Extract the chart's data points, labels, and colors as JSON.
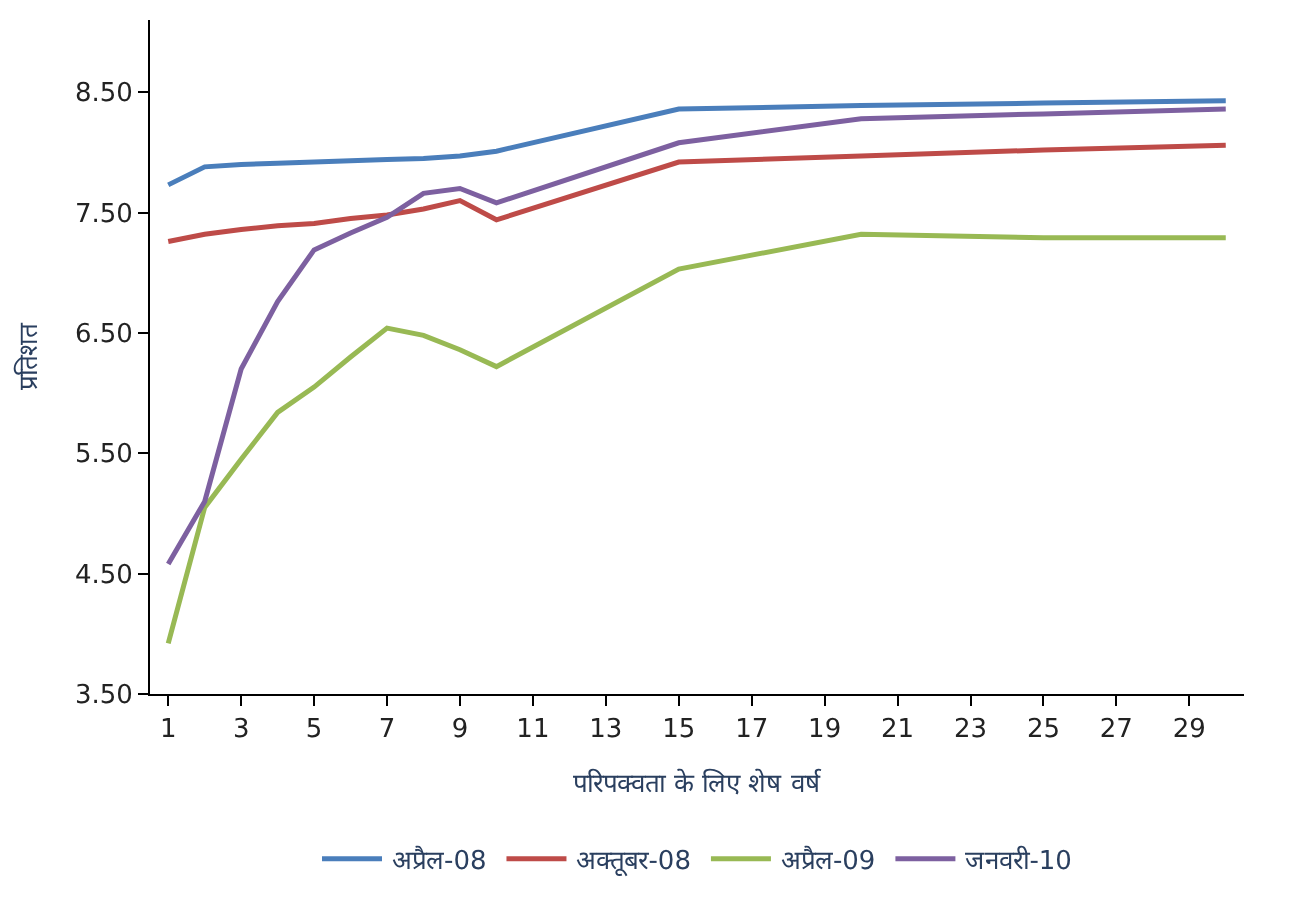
{
  "chart_data": {
    "type": "line",
    "xlabel": "परिपक्वता के लिए शेष वर्ष",
    "ylabel": "प्रतिशत",
    "xlim": [
      0.5,
      30.5
    ],
    "xticks": [
      1,
      3,
      5,
      7,
      9,
      11,
      13,
      15,
      17,
      19,
      21,
      23,
      25,
      27,
      29
    ],
    "ylim": [
      3.5,
      9.1
    ],
    "yticks": [
      {
        "value": 3.5,
        "label": "3.50"
      },
      {
        "value": 4.5,
        "label": "4.50"
      },
      {
        "value": 5.5,
        "label": "5.50"
      },
      {
        "value": 6.5,
        "label": "6.50"
      },
      {
        "value": 7.5,
        "label": "7.50"
      },
      {
        "value": 8.5,
        "label": "8.50"
      }
    ],
    "legend": "bottom",
    "marker": "none",
    "line_style": "solid",
    "x": [
      1,
      2,
      3,
      4,
      5,
      6,
      7,
      8,
      9,
      10,
      15,
      20,
      25,
      30
    ],
    "series": [
      {
        "name": "अप्रैल-08",
        "color": "#4a7ebb",
        "values": [
          7.73,
          7.88,
          7.9,
          7.91,
          7.92,
          7.93,
          7.94,
          7.95,
          7.97,
          8.01,
          8.36,
          8.39,
          8.41,
          8.43
        ]
      },
      {
        "name": "अक्तूबर-08",
        "color": "#be4b48",
        "values": [
          7.26,
          7.32,
          7.36,
          7.39,
          7.41,
          7.45,
          7.48,
          7.53,
          7.6,
          7.44,
          7.92,
          7.97,
          8.02,
          8.06
        ]
      },
      {
        "name": "अप्रैल-09",
        "color": "#98b954",
        "values": [
          3.92,
          5.05,
          5.45,
          5.84,
          6.05,
          6.3,
          6.54,
          6.48,
          6.36,
          6.22,
          7.03,
          7.32,
          7.29,
          7.29
        ]
      },
      {
        "name": "जनवरी-10",
        "color": "#7d60a0",
        "values": [
          4.58,
          5.1,
          6.2,
          6.76,
          7.19,
          7.33,
          7.46,
          7.66,
          7.7,
          7.58,
          8.08,
          8.28,
          8.32,
          8.36
        ]
      }
    ]
  }
}
